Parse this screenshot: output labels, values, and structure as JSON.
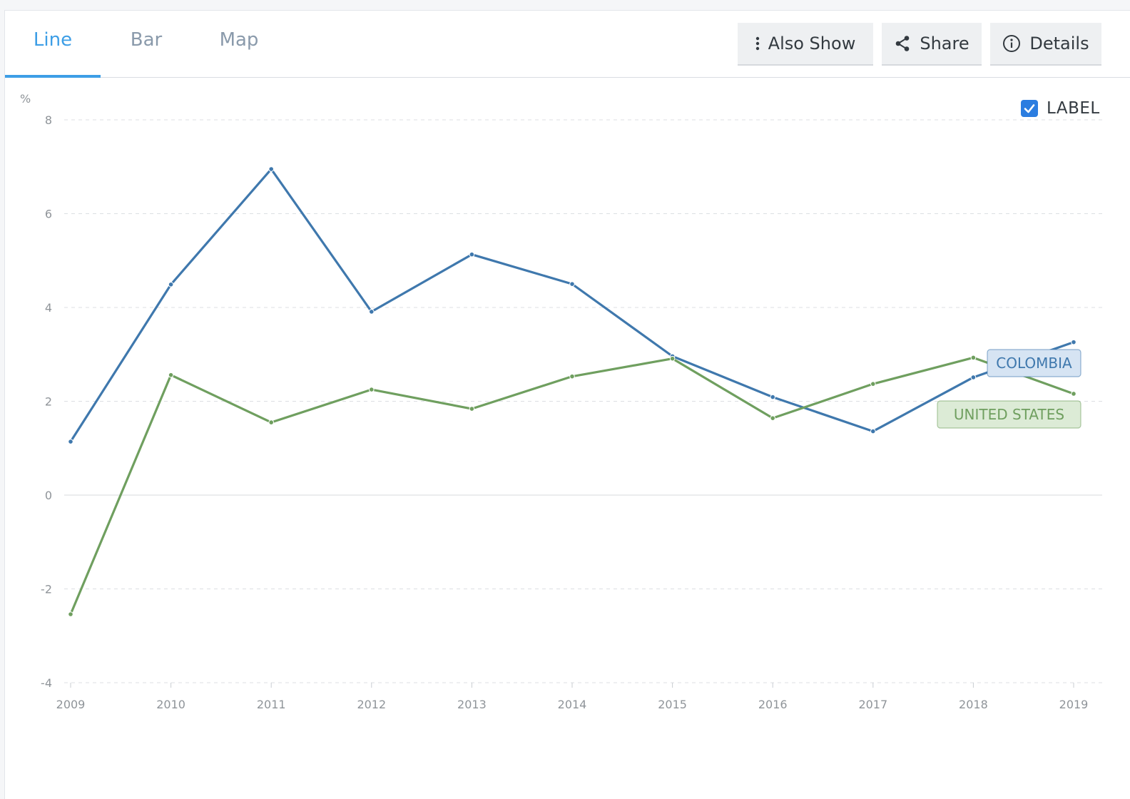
{
  "tabs": [
    {
      "label": "Line",
      "active": true
    },
    {
      "label": "Bar",
      "active": false
    },
    {
      "label": "Map",
      "active": false
    }
  ],
  "toolbar": {
    "also_show_label": "Also Show",
    "share_label": "Share",
    "details_label": "Details"
  },
  "legend_toggle": {
    "label": "LABEL",
    "checked": true
  },
  "colors": {
    "accent": "#3d9ee6",
    "colombia": "#3f78ad",
    "united_states": "#6f9f5f"
  },
  "chart_data": {
    "type": "line",
    "ylabel": "%",
    "ylim": [
      -4,
      8
    ],
    "yticks": [
      -4,
      -2,
      0,
      2,
      4,
      6,
      8
    ],
    "x": [
      2009,
      2010,
      2011,
      2012,
      2013,
      2014,
      2015,
      2016,
      2017,
      2018,
      2019
    ],
    "grid": true,
    "series": [
      {
        "name": "COLOMBIA",
        "color": "#3f78ad",
        "label_fill": "#d6e4f3",
        "values": [
          1.14,
          4.49,
          6.95,
          3.91,
          5.13,
          4.5,
          2.96,
          2.09,
          1.36,
          2.51,
          3.26
        ]
      },
      {
        "name": "UNITED STATES",
        "color": "#6f9f5f",
        "label_fill": "#dcebd6",
        "values": [
          -2.54,
          2.56,
          1.55,
          2.25,
          1.84,
          2.53,
          2.91,
          1.64,
          2.37,
          2.93,
          2.16
        ]
      }
    ]
  }
}
